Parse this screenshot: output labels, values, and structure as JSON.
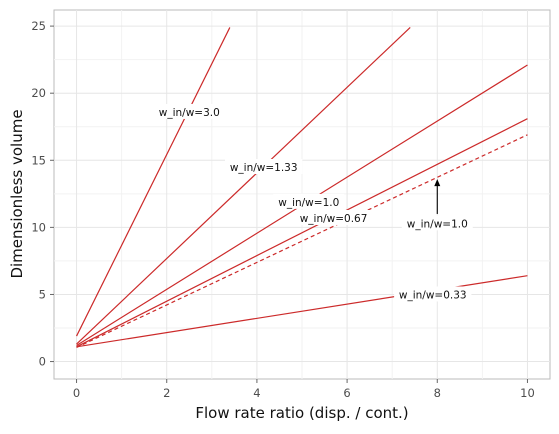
{
  "chart_data": {
    "type": "line",
    "title": "",
    "xlabel": "Flow rate ratio (disp. / cont.)",
    "ylabel": "Dimensionless volume",
    "xlim": [
      -0.5,
      10.5
    ],
    "ylim": [
      -1.3,
      26.2
    ],
    "xticks": [
      0,
      2,
      4,
      6,
      8,
      10
    ],
    "yticks": [
      0,
      5,
      10,
      15,
      20,
      25
    ],
    "grid": true,
    "line_color": "#cc2a2a",
    "series": [
      {
        "name": "w_in/w=3.0",
        "style": "solid",
        "x": [
          0,
          3.4
        ],
        "y": [
          1.9,
          24.9
        ]
      },
      {
        "name": "w_in/w=1.33",
        "style": "solid",
        "x": [
          0,
          7.4
        ],
        "y": [
          1.3,
          24.9
        ]
      },
      {
        "name": "w_in/w=1.0",
        "style": "solid",
        "x": [
          0,
          10
        ],
        "y": [
          1.2,
          22.1
        ]
      },
      {
        "name": "w_in/w=0.67",
        "style": "solid",
        "x": [
          0,
          10
        ],
        "y": [
          1.1,
          18.1
        ]
      },
      {
        "name": "w_in/w=1.0",
        "style": "dashed",
        "x": [
          0,
          10
        ],
        "y": [
          1.05,
          16.9
        ]
      },
      {
        "name": "w_in/w=0.33",
        "style": "solid",
        "x": [
          0,
          10
        ],
        "y": [
          1.1,
          6.4
        ]
      }
    ],
    "annotations": [
      {
        "text": "w_in/w=3.0",
        "x": 2.5,
        "y": 18.6
      },
      {
        "text": "w_in/w=1.33",
        "x": 4.15,
        "y": 14.5
      },
      {
        "text": "w_in/w=1.0",
        "x": 5.15,
        "y": 11.9
      },
      {
        "text": "w_in/w=0.67",
        "x": 5.7,
        "y": 10.7
      },
      {
        "text": "w_in/w=1.0",
        "x": 8.0,
        "y": 10.3
      },
      {
        "text": "w_in/w=0.33",
        "x": 7.9,
        "y": 5.0
      }
    ],
    "arrow": {
      "from": [
        8.0,
        11.0
      ],
      "to": [
        8.0,
        13.6
      ]
    }
  }
}
